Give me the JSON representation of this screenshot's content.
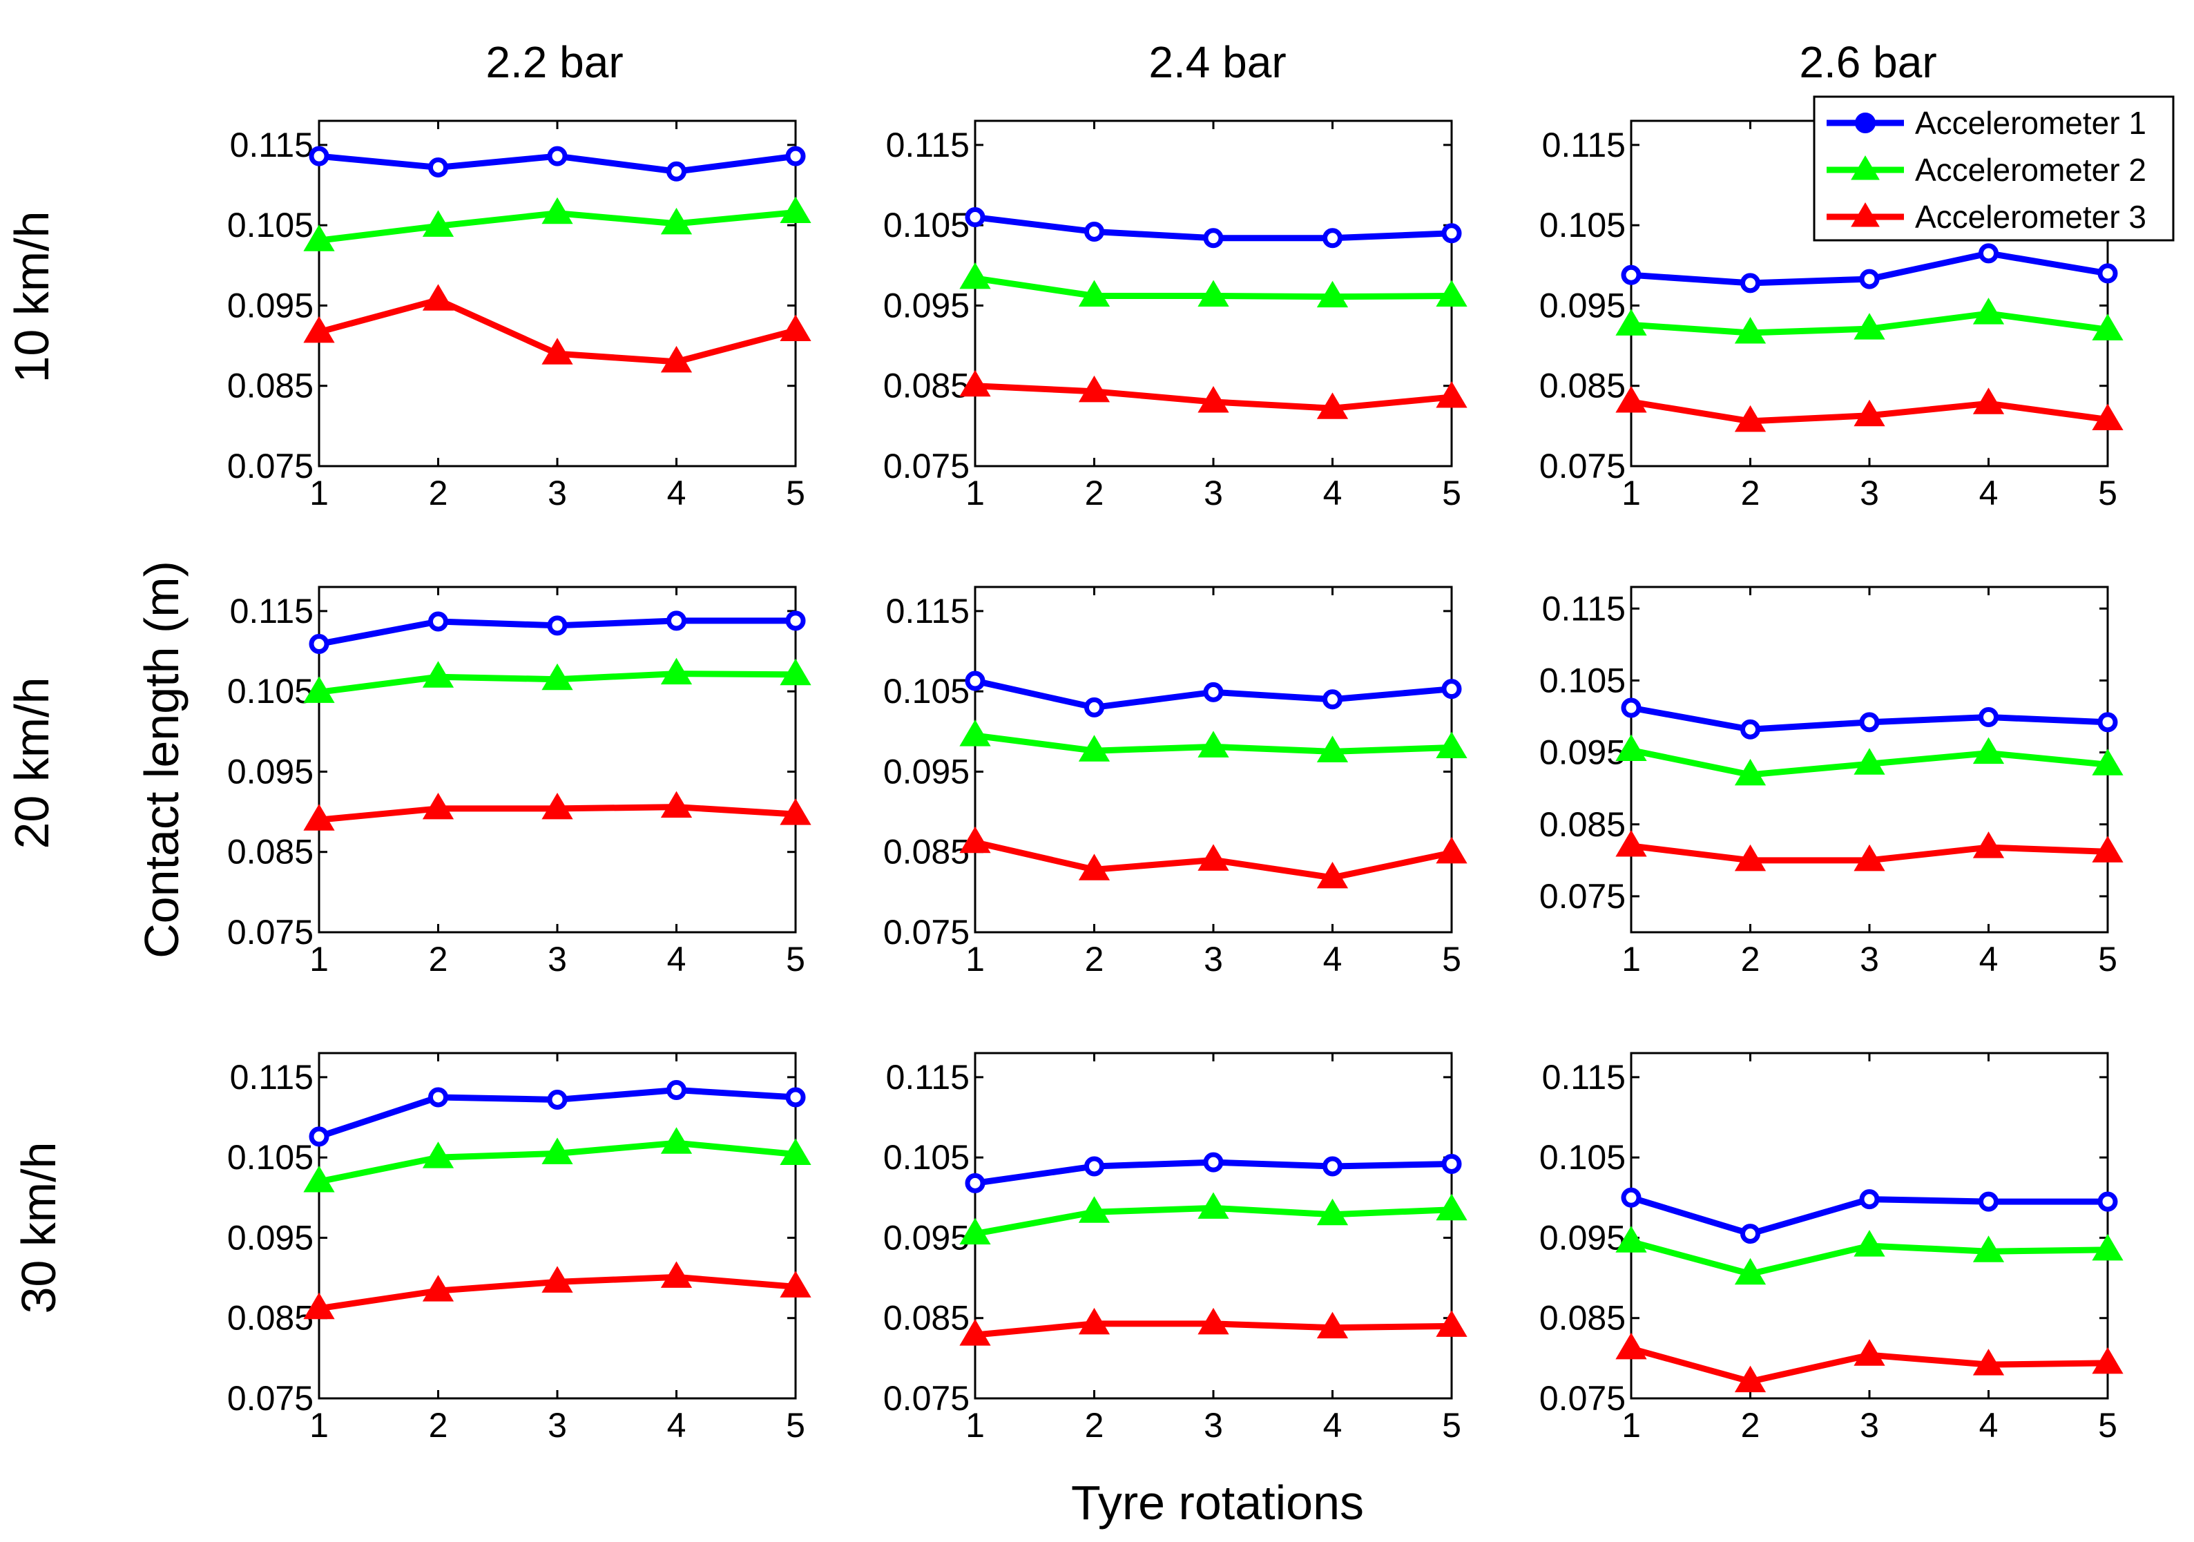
{
  "figure": {
    "ylabel": "Contact length (m)",
    "xlabel": "Tyre rotations",
    "column_titles": [
      "2.2 bar",
      "2.4 bar",
      "2.6 bar"
    ],
    "row_labels": [
      "10 km/h",
      "20 km/h",
      "30 km/h"
    ],
    "legend": [
      {
        "name": "Accelerometer 1",
        "color": "#0000ff",
        "marker": "circle"
      },
      {
        "name": "Accelerometer 2",
        "color": "#00ff00",
        "marker": "triangle"
      },
      {
        "name": "Accelerometer 3",
        "color": "#ff0000",
        "marker": "triangle"
      }
    ],
    "legend_position": "top-right of 2.6 bar / 10 km/h panel",
    "yticks": [
      "0.075",
      "0.085",
      "0.095",
      "0.105",
      "0.115"
    ],
    "xticks": [
      "1",
      "2",
      "3",
      "4",
      "5"
    ]
  },
  "chart_data": [
    {
      "type": "line",
      "row": "10 km/h",
      "column": "2.2 bar",
      "x": [
        1,
        2,
        3,
        4,
        5
      ],
      "ylim": [
        0.075,
        0.118
      ],
      "xlim": [
        1,
        5
      ],
      "series": [
        {
          "name": "Accelerometer 1",
          "values": [
            0.1136,
            0.1122,
            0.1136,
            0.1117,
            0.1136
          ]
        },
        {
          "name": "Accelerometer 2",
          "values": [
            0.1031,
            0.1049,
            0.1065,
            0.1052,
            0.1066
          ]
        },
        {
          "name": "Accelerometer 3",
          "values": [
            0.0917,
            0.0957,
            0.089,
            0.088,
            0.0919
          ]
        }
      ]
    },
    {
      "type": "line",
      "row": "10 km/h",
      "column": "2.4 bar",
      "x": [
        1,
        2,
        3,
        4,
        5
      ],
      "ylim": [
        0.075,
        0.118
      ],
      "xlim": [
        1,
        5
      ],
      "series": [
        {
          "name": "Accelerometer 1",
          "values": [
            0.106,
            0.1042,
            0.1034,
            0.1034,
            0.104
          ]
        },
        {
          "name": "Accelerometer 2",
          "values": [
            0.0984,
            0.0962,
            0.0962,
            0.0961,
            0.0962
          ]
        },
        {
          "name": "Accelerometer 3",
          "values": [
            0.085,
            0.0843,
            0.083,
            0.0822,
            0.0836
          ]
        }
      ]
    },
    {
      "type": "line",
      "row": "10 km/h",
      "column": "2.6 bar",
      "x": [
        1,
        2,
        3,
        4,
        5
      ],
      "ylim": [
        0.075,
        0.118
      ],
      "xlim": [
        1,
        5
      ],
      "series": [
        {
          "name": "Accelerometer 1",
          "values": [
            0.0988,
            0.0978,
            0.0983,
            0.1015,
            0.099
          ]
        },
        {
          "name": "Accelerometer 2",
          "values": [
            0.0926,
            0.0916,
            0.0921,
            0.094,
            0.092
          ]
        },
        {
          "name": "Accelerometer 3",
          "values": [
            0.083,
            0.0806,
            0.0813,
            0.0828,
            0.0808
          ]
        }
      ]
    },
    {
      "type": "line",
      "row": "20 km/h",
      "column": "2.2 bar",
      "x": [
        1,
        2,
        3,
        4,
        5
      ],
      "ylim": [
        0.075,
        0.118
      ],
      "xlim": [
        1,
        5
      ],
      "series": [
        {
          "name": "Accelerometer 1",
          "values": [
            0.1109,
            0.1137,
            0.1132,
            0.1138,
            0.1138
          ]
        },
        {
          "name": "Accelerometer 2",
          "values": [
            0.1049,
            0.1068,
            0.1065,
            0.1072,
            0.1071
          ]
        },
        {
          "name": "Accelerometer 3",
          "values": [
            0.089,
            0.0904,
            0.0904,
            0.0906,
            0.0897
          ]
        }
      ]
    },
    {
      "type": "line",
      "row": "20 km/h",
      "column": "2.4 bar",
      "x": [
        1,
        2,
        3,
        4,
        5
      ],
      "ylim": [
        0.075,
        0.118
      ],
      "xlim": [
        1,
        5
      ],
      "series": [
        {
          "name": "Accelerometer 1",
          "values": [
            0.1063,
            0.103,
            0.1049,
            0.104,
            0.1053
          ]
        },
        {
          "name": "Accelerometer 2",
          "values": [
            0.0995,
            0.0976,
            0.0981,
            0.0975,
            0.098
          ]
        },
        {
          "name": "Accelerometer 3",
          "values": [
            0.0862,
            0.0828,
            0.084,
            0.0818,
            0.0849
          ]
        }
      ]
    },
    {
      "type": "line",
      "row": "20 km/h",
      "column": "2.6 bar",
      "x": [
        1,
        2,
        3,
        4,
        5
      ],
      "ylim": [
        0.07,
        0.118
      ],
      "xlim": [
        1,
        5
      ],
      "series": [
        {
          "name": "Accelerometer 1",
          "values": [
            0.1012,
            0.0982,
            0.0992,
            0.0999,
            0.0992
          ]
        },
        {
          "name": "Accelerometer 2",
          "values": [
            0.0953,
            0.0919,
            0.0934,
            0.0949,
            0.0933
          ]
        },
        {
          "name": "Accelerometer 3",
          "values": [
            0.082,
            0.08,
            0.08,
            0.0818,
            0.0812
          ]
        }
      ]
    },
    {
      "type": "line",
      "row": "30 km/h",
      "column": "2.2 bar",
      "x": [
        1,
        2,
        3,
        4,
        5
      ],
      "ylim": [
        0.075,
        0.118
      ],
      "xlim": [
        1,
        5
      ],
      "series": [
        {
          "name": "Accelerometer 1",
          "values": [
            0.1076,
            0.1125,
            0.1122,
            0.1134,
            0.1125
          ]
        },
        {
          "name": "Accelerometer 2",
          "values": [
            0.102,
            0.105,
            0.1055,
            0.1068,
            0.1054
          ]
        },
        {
          "name": "Accelerometer 3",
          "values": [
            0.0862,
            0.0884,
            0.0895,
            0.0901,
            0.0889
          ]
        }
      ]
    },
    {
      "type": "line",
      "row": "30 km/h",
      "column": "2.4 bar",
      "x": [
        1,
        2,
        3,
        4,
        5
      ],
      "ylim": [
        0.075,
        0.118
      ],
      "xlim": [
        1,
        5
      ],
      "series": [
        {
          "name": "Accelerometer 1",
          "values": [
            0.1018,
            0.1039,
            0.1044,
            0.1039,
            0.1042
          ]
        },
        {
          "name": "Accelerometer 2",
          "values": [
            0.0955,
            0.0982,
            0.0987,
            0.0979,
            0.0985
          ]
        },
        {
          "name": "Accelerometer 3",
          "values": [
            0.0829,
            0.0843,
            0.0843,
            0.0838,
            0.084
          ]
        }
      ]
    },
    {
      "type": "line",
      "row": "30 km/h",
      "column": "2.6 bar",
      "x": [
        1,
        2,
        3,
        4,
        5
      ],
      "ylim": [
        0.075,
        0.118
      ],
      "xlim": [
        1,
        5
      ],
      "series": [
        {
          "name": "Accelerometer 1",
          "values": [
            0.1,
            0.0955,
            0.0998,
            0.0995,
            0.0995
          ]
        },
        {
          "name": "Accelerometer 2",
          "values": [
            0.0945,
            0.0905,
            0.094,
            0.0933,
            0.0935
          ]
        },
        {
          "name": "Accelerometer 3",
          "values": [
            0.0812,
            0.0771,
            0.0804,
            0.0792,
            0.0794
          ]
        }
      ]
    }
  ]
}
